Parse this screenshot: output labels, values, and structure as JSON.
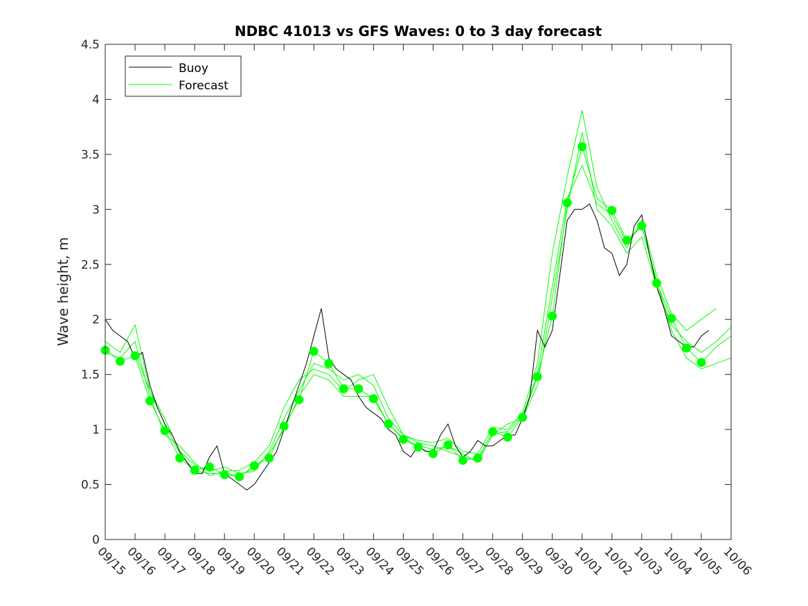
{
  "chart_data": {
    "type": "line",
    "title": "NDBC 41013 vs GFS Waves: 0 to 3 day forecast",
    "xlabel": "",
    "ylabel": "Wave height, m",
    "xlim_days": [
      0,
      21
    ],
    "ylim": [
      0,
      4.5
    ],
    "yticks": [
      "0",
      "0.5",
      "1",
      "1.5",
      "2",
      "2.5",
      "3",
      "3.5",
      "4",
      "4.5"
    ],
    "xtick_labels": [
      "09/15",
      "09/16",
      "09/17",
      "09/18",
      "09/19",
      "09/20",
      "09/21",
      "09/22",
      "09/23",
      "09/24",
      "09/25",
      "09/26",
      "09/27",
      "09/28",
      "09/29",
      "09/30",
      "10/01",
      "10/02",
      "10/03",
      "10/04",
      "10/05",
      "10/06"
    ],
    "grid": false,
    "legend": {
      "position": "top-left",
      "entries": [
        "Buoy",
        "Forecast"
      ]
    },
    "colors": {
      "buoy": "#000000",
      "forecast": "#00ff00",
      "markers": "#00ff00"
    },
    "buoy": {
      "x_step_days": 0.25,
      "values": [
        2.0,
        1.9,
        1.85,
        1.8,
        1.65,
        1.7,
        1.4,
        1.2,
        1.05,
        0.95,
        0.8,
        0.7,
        0.6,
        0.6,
        0.75,
        0.85,
        0.6,
        0.55,
        0.5,
        0.45,
        0.5,
        0.6,
        0.7,
        0.8,
        1.0,
        1.2,
        1.4,
        1.6,
        1.85,
        2.1,
        1.65,
        1.55,
        1.5,
        1.45,
        1.3,
        1.2,
        1.15,
        1.1,
        1.0,
        0.95,
        0.8,
        0.75,
        0.85,
        0.8,
        0.8,
        0.95,
        1.05,
        0.85,
        0.75,
        0.8,
        0.9,
        0.85,
        0.85,
        0.9,
        0.95,
        0.95,
        1.1,
        1.3,
        1.9,
        1.75,
        1.9,
        2.4,
        2.9,
        3.0,
        3.0,
        3.05,
        2.9,
        2.65,
        2.6,
        2.4,
        2.5,
        2.85,
        2.95,
        2.6,
        2.3,
        2.1,
        1.85,
        1.8,
        1.75,
        1.75,
        1.85,
        1.9
      ]
    },
    "forecast_runs": {
      "x_step_days": 0.5,
      "series": [
        {
          "name": "Forecast",
          "values": [
            1.72,
            1.62,
            1.67,
            1.26,
            0.99,
            0.74,
            0.63,
            0.66,
            0.59,
            0.57,
            0.67,
            0.74,
            1.03,
            1.27,
            1.71,
            1.6,
            1.37,
            1.37,
            1.28,
            1.05,
            0.91,
            0.84,
            0.78,
            0.86,
            0.72,
            0.74,
            0.98,
            0.93,
            1.11,
            1.48,
            2.03,
            3.06,
            3.57,
            3.1,
            2.99,
            2.72,
            2.85,
            2.33,
            2.01,
            1.74,
            1.61,
            1.75,
            1.85
          ]
        },
        {
          "name": "Forecast",
          "values": [
            1.8,
            1.7,
            1.95,
            1.35,
            1.1,
            0.8,
            0.68,
            0.62,
            0.66,
            0.6,
            0.62,
            0.8,
            1.1,
            1.35,
            1.6,
            1.55,
            1.45,
            1.5,
            1.4,
            1.1,
            0.95,
            0.9,
            0.88,
            0.92,
            0.8,
            0.78,
            1.02,
            1.0,
            1.15,
            1.6,
            2.6,
            3.3,
            3.9,
            3.2,
            2.9,
            2.65,
            2.9,
            2.4,
            2.05,
            1.9,
            2.0,
            2.1,
            null
          ]
        },
        {
          "name": "Forecast",
          "values": [
            1.7,
            1.65,
            1.8,
            1.3,
            0.95,
            0.85,
            0.7,
            0.58,
            0.62,
            0.63,
            0.7,
            0.85,
            1.2,
            1.45,
            1.55,
            1.5,
            1.35,
            1.45,
            1.5,
            1.2,
            0.95,
            0.88,
            0.85,
            0.8,
            0.75,
            0.72,
            0.95,
            1.05,
            1.1,
            1.4,
            2.2,
            3.0,
            3.7,
            3.0,
            2.85,
            2.6,
            2.75,
            2.3,
            1.95,
            1.8,
            1.7,
            1.8,
            1.93
          ]
        },
        {
          "name": "Forecast",
          "values": [
            null,
            null,
            1.7,
            1.35,
            1.05,
            0.78,
            0.62,
            0.6,
            0.6,
            0.58,
            0.65,
            0.78,
            1.0,
            1.3,
            1.5,
            1.45,
            1.3,
            1.3,
            1.3,
            1.05,
            0.92,
            0.85,
            0.82,
            0.85,
            0.78,
            0.7,
            0.96,
            0.98,
            1.12,
            1.5,
            2.3,
            3.1,
            3.4,
            3.05,
            2.95,
            2.7,
            2.85,
            2.35,
            1.9,
            1.65,
            1.55,
            1.6,
            1.65
          ]
        }
      ]
    },
    "markers": {
      "x_days": [
        0,
        0.5,
        1,
        1.5,
        2,
        2.5,
        3,
        3.5,
        4,
        4.5,
        5,
        5.5,
        6,
        6.5,
        7,
        7.5,
        8,
        8.5,
        9,
        9.5,
        10,
        10.5,
        11,
        11.5,
        12,
        12.5,
        13,
        13.5,
        14,
        14.5,
        15,
        15.5,
        16,
        17,
        17.5,
        18,
        18.5,
        19,
        19.5,
        20
      ],
      "values": [
        1.72,
        1.62,
        1.67,
        1.26,
        0.99,
        0.74,
        0.63,
        0.66,
        0.59,
        0.57,
        0.67,
        0.74,
        1.03,
        1.27,
        1.71,
        1.6,
        1.37,
        1.37,
        1.28,
        1.05,
        0.91,
        0.84,
        0.78,
        0.86,
        0.72,
        0.74,
        0.98,
        0.93,
        1.11,
        1.48,
        2.03,
        3.06,
        3.57,
        2.99,
        2.72,
        2.85,
        2.33,
        2.01,
        1.74,
        1.61
      ]
    }
  }
}
